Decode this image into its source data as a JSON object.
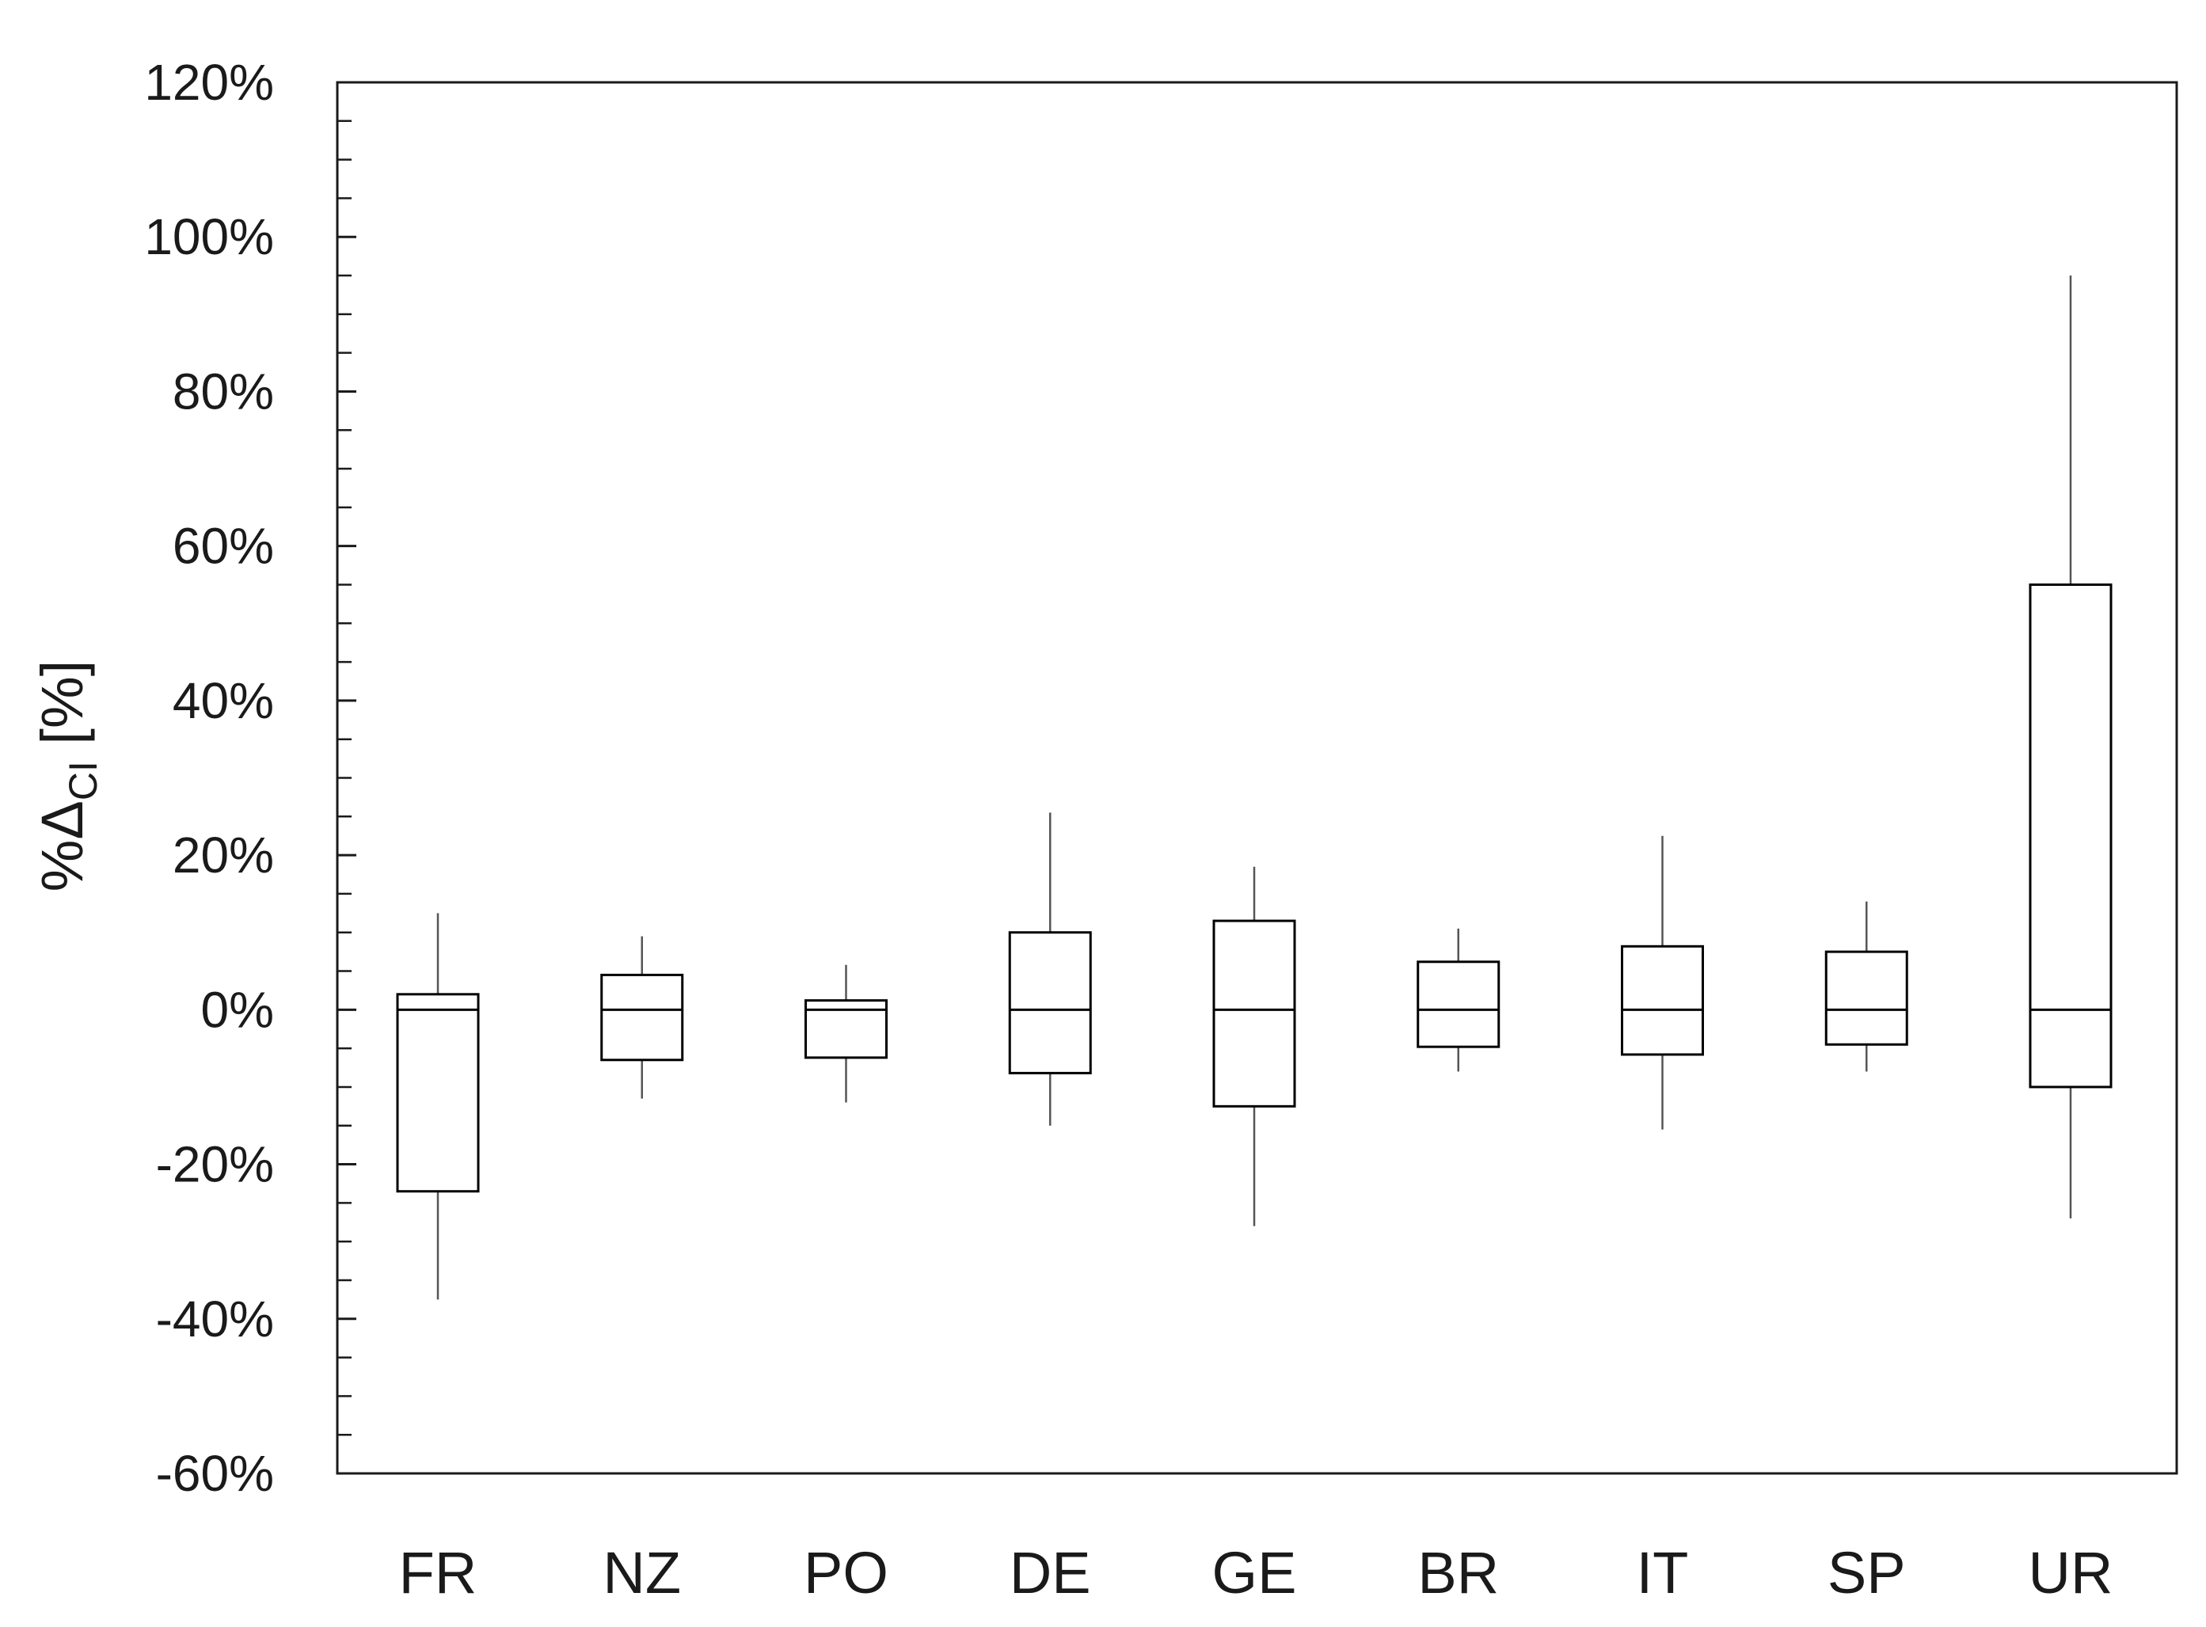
{
  "chart_data": {
    "type": "box",
    "title": "",
    "xlabel": "",
    "ylabel": {
      "prefix": "%Δ",
      "subscript": "CI",
      "suffix": " [%]"
    },
    "ylim": [
      -60,
      120
    ],
    "y_major_step": 20,
    "y_minor_step": 5,
    "y_tick_format": "percent",
    "y_ticks": [
      "-60%",
      "-40%",
      "-20%",
      "0%",
      "20%",
      "40%",
      "60%",
      "80%",
      "100%",
      "120%"
    ],
    "grid": false,
    "legend": "none",
    "categories": [
      "FR",
      "NZ",
      "PO",
      "DE",
      "GE",
      "BR",
      "IT",
      "SP",
      "UR"
    ],
    "series": [
      {
        "boxes": [
          {
            "category": "FR",
            "whisker_low": -37.5,
            "q1": -23.5,
            "median": 0,
            "q3": 2,
            "whisker_high": 12.5
          },
          {
            "category": "NZ",
            "whisker_low": -11.5,
            "q1": -6.5,
            "median": 0,
            "q3": 4.5,
            "whisker_high": 9.5
          },
          {
            "category": "PO",
            "whisker_low": -12,
            "q1": -6.2,
            "median": 0,
            "q3": 1.2,
            "whisker_high": 5.8
          },
          {
            "category": "DE",
            "whisker_low": -15,
            "q1": -8.2,
            "median": 0,
            "q3": 10,
            "whisker_high": 25.5
          },
          {
            "category": "GE",
            "whisker_low": -28,
            "q1": -12.5,
            "median": 0,
            "q3": 11.5,
            "whisker_high": 18.5
          },
          {
            "category": "BR",
            "whisker_low": -8,
            "q1": -4.8,
            "median": 0,
            "q3": 6.2,
            "whisker_high": 10.5
          },
          {
            "category": "IT",
            "whisker_low": -15.5,
            "q1": -5.8,
            "median": 0,
            "q3": 8.2,
            "whisker_high": 22.5
          },
          {
            "category": "SP",
            "whisker_low": -8,
            "q1": -4.5,
            "median": 0,
            "q3": 7.5,
            "whisker_high": 14
          },
          {
            "category": "UR",
            "whisker_low": -27,
            "q1": -10,
            "median": 0,
            "q3": 55,
            "whisker_high": 95
          }
        ]
      }
    ],
    "colors": {
      "box_stroke": "#000000",
      "whisker": "#555555",
      "axis": "#1a1a1a",
      "background": "#ffffff"
    }
  }
}
